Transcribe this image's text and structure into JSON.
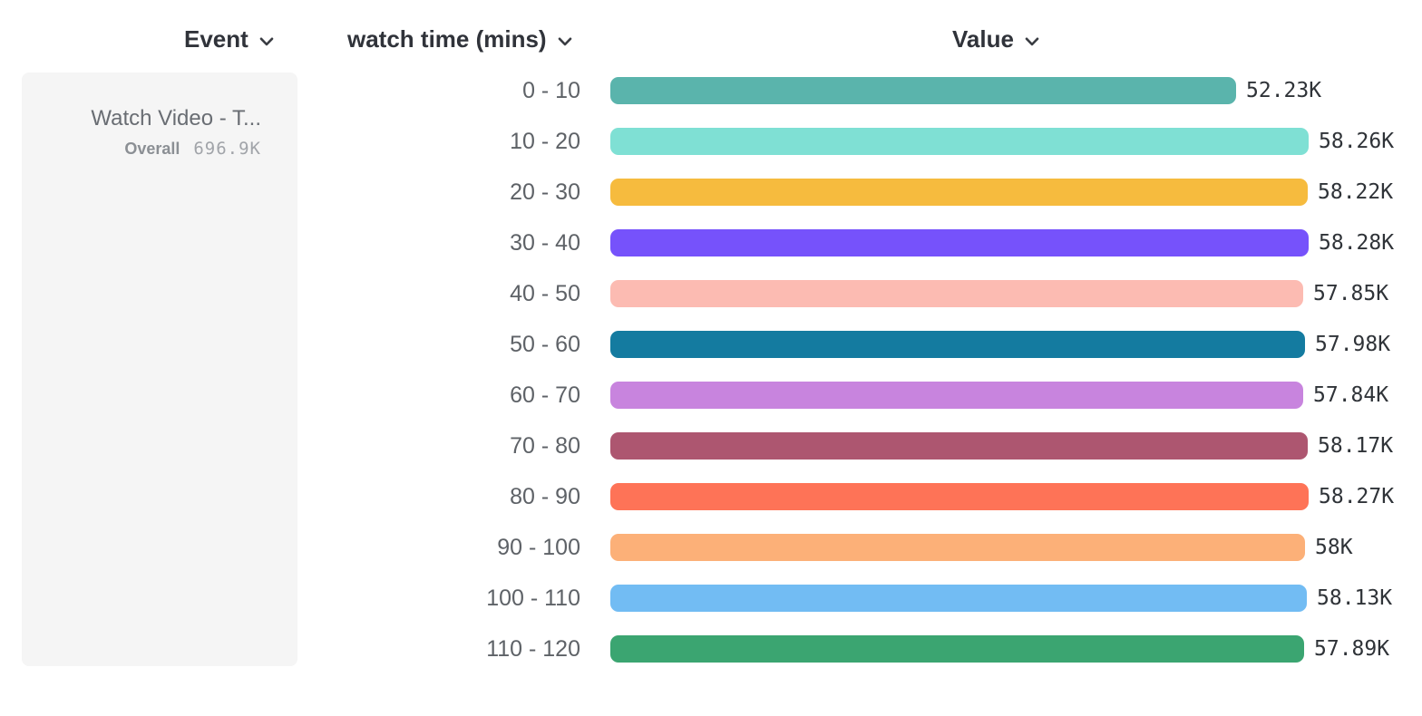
{
  "headers": {
    "event": "Event",
    "breakdown": "watch time (mins)",
    "value": "Value"
  },
  "event_card": {
    "name": "Watch Video - T...",
    "overall_label": "Overall",
    "overall_value": "696.9K"
  },
  "chart_data": {
    "type": "bar",
    "orientation": "horizontal",
    "title": "",
    "xlabel": "Value",
    "ylabel": "watch time (mins)",
    "xlim": [
      0,
      58280
    ],
    "grid": false,
    "legend": false,
    "categories": [
      "0 - 10",
      "10 - 20",
      "20 - 30",
      "30 - 40",
      "40 - 50",
      "50 - 60",
      "60 - 70",
      "70 - 80",
      "80 - 90",
      "90 - 100",
      "100 - 110",
      "110 - 120"
    ],
    "values": [
      52230,
      58260,
      58220,
      58280,
      57850,
      57980,
      57840,
      58170,
      58270,
      58000,
      58130,
      57890
    ],
    "value_labels": [
      "52.23K",
      "58.26K",
      "58.22K",
      "58.28K",
      "57.85K",
      "57.98K",
      "57.84K",
      "58.17K",
      "58.27K",
      "58K",
      "58.13K",
      "57.89K"
    ],
    "bar_colors": [
      "#5ab4ac",
      "#7fe0d4",
      "#f6bb3e",
      "#7652fb",
      "#fcbbb2",
      "#147ba0",
      "#c884de",
      "#ad5670",
      "#fe7357",
      "#fcb078",
      "#72bcf3",
      "#3ba571"
    ]
  },
  "icons": {
    "chevron_down": "chevron-down"
  },
  "colors": {
    "header_text": "#30333a",
    "bucket_text": "#5e6267",
    "value_text": "#2f3338",
    "card_bg": "#f5f5f5"
  }
}
